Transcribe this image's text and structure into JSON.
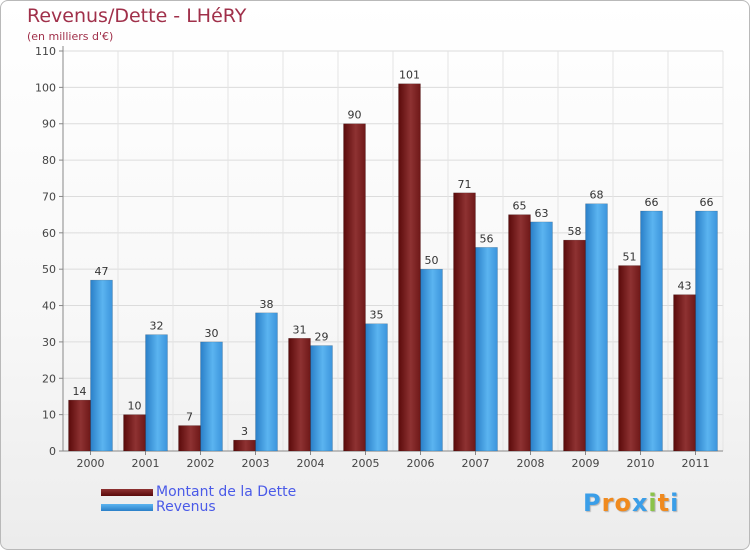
{
  "chart_data": {
    "type": "bar",
    "title": "Revenus/Dette - LHéRY",
    "subtitle": "(en milliers d'€)",
    "xlabel": "",
    "ylabel": "",
    "ylim": [
      0,
      110
    ],
    "yticks": [
      0,
      10,
      20,
      30,
      40,
      50,
      60,
      70,
      80,
      90,
      100,
      110
    ],
    "grid": true,
    "legend_position": "bottom-left",
    "categories": [
      "2000",
      "2001",
      "2002",
      "2003",
      "2004",
      "2005",
      "2006",
      "2007",
      "2008",
      "2009",
      "2010",
      "2011"
    ],
    "series": [
      {
        "name": "Montant de la Dette",
        "color": "#7a1c1c",
        "values": [
          14,
          10,
          7,
          3,
          31,
          90,
          101,
          71,
          65,
          58,
          51,
          43
        ]
      },
      {
        "name": "Revenus",
        "color": "#3d9be6",
        "values": [
          47,
          32,
          30,
          38,
          29,
          35,
          50,
          56,
          63,
          68,
          66,
          66
        ]
      }
    ]
  },
  "colors": {
    "title": "#a0304a",
    "legend_text": "#4a5ae8",
    "debt_dark": "#5a0a0a",
    "debt_light": "#8e3232",
    "revenue_dark": "#2a7fc8",
    "revenue_light": "#5bb4f0"
  },
  "legend": {
    "debt_label": "Montant de la Dette",
    "revenue_label": "Revenus"
  },
  "logo": {
    "letters": [
      "P",
      "r",
      "o",
      "x",
      "i",
      "t",
      "i"
    ],
    "letter_colors": [
      "#3a9ee8",
      "#f08a1e",
      "#f08a1e",
      "#3a9ee8",
      "#8bc34a",
      "#f08a1e",
      "#3a9ee8"
    ]
  }
}
